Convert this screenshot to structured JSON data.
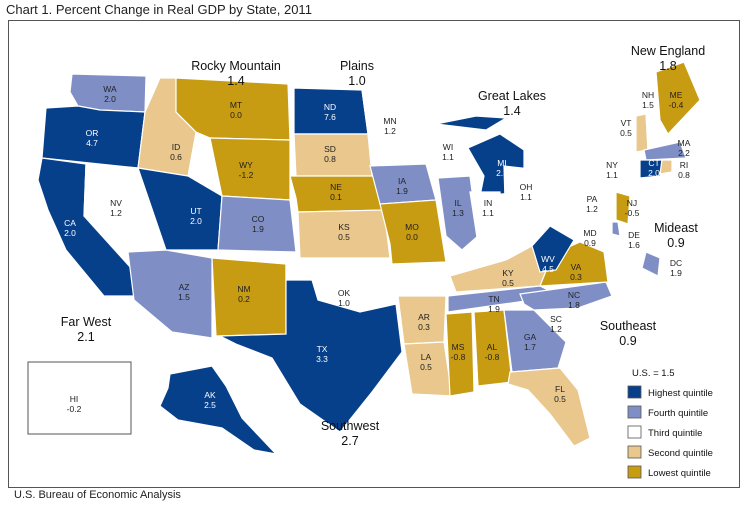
{
  "title": "Chart 1. Percent Change in Real GDP by State, 2011",
  "source": "U.S. Bureau of Economic Analysis",
  "colors": {
    "highest": "#063f8a",
    "fourth": "#7f8fc6",
    "third": "#ffffff",
    "second": "#e9c78d",
    "lowest": "#c79b12"
  },
  "legend": {
    "title": "U.S. = 1.5",
    "items": [
      {
        "label": "Highest quintile",
        "key": "highest"
      },
      {
        "label": "Fourth quintile",
        "key": "fourth"
      },
      {
        "label": "Third quintile",
        "key": "third"
      },
      {
        "label": "Second quintile",
        "key": "second"
      },
      {
        "label": "Lowest quintile",
        "key": "lowest"
      }
    ]
  },
  "regions": [
    {
      "name": "Far West",
      "value": "2.1"
    },
    {
      "name": "Rocky Mountain",
      "value": "1.4"
    },
    {
      "name": "Plains",
      "value": "1.0"
    },
    {
      "name": "Great Lakes",
      "value": "1.4"
    },
    {
      "name": "New England",
      "value": "1.8"
    },
    {
      "name": "Mideast",
      "value": "0.9"
    },
    {
      "name": "Southeast",
      "value": "0.9"
    },
    {
      "name": "Southwest",
      "value": "2.7"
    }
  ],
  "states": [
    {
      "abbr": "WA",
      "value": "2.0",
      "q": "fourth"
    },
    {
      "abbr": "OR",
      "value": "4.7",
      "q": "highest"
    },
    {
      "abbr": "CA",
      "value": "2.0",
      "q": "highest"
    },
    {
      "abbr": "NV",
      "value": "1.2",
      "q": "third"
    },
    {
      "abbr": "ID",
      "value": "0.6",
      "q": "second"
    },
    {
      "abbr": "MT",
      "value": "0.0",
      "q": "lowest"
    },
    {
      "abbr": "WY",
      "value": "-1.2",
      "q": "lowest"
    },
    {
      "abbr": "UT",
      "value": "2.0",
      "q": "highest"
    },
    {
      "abbr": "CO",
      "value": "1.9",
      "q": "fourth"
    },
    {
      "abbr": "AZ",
      "value": "1.5",
      "q": "fourth"
    },
    {
      "abbr": "NM",
      "value": "0.2",
      "q": "lowest"
    },
    {
      "abbr": "ND",
      "value": "7.6",
      "q": "highest"
    },
    {
      "abbr": "SD",
      "value": "0.8",
      "q": "second"
    },
    {
      "abbr": "NE",
      "value": "0.1",
      "q": "lowest"
    },
    {
      "abbr": "KS",
      "value": "0.5",
      "q": "second"
    },
    {
      "abbr": "MN",
      "value": "1.2",
      "q": "third"
    },
    {
      "abbr": "IA",
      "value": "1.9",
      "q": "fourth"
    },
    {
      "abbr": "MO",
      "value": "0.0",
      "q": "lowest"
    },
    {
      "abbr": "OK",
      "value": "1.0",
      "q": "third"
    },
    {
      "abbr": "TX",
      "value": "3.3",
      "q": "highest"
    },
    {
      "abbr": "AR",
      "value": "0.3",
      "q": "second"
    },
    {
      "abbr": "LA",
      "value": "0.5",
      "q": "second"
    },
    {
      "abbr": "WI",
      "value": "1.1",
      "q": "third"
    },
    {
      "abbr": "IL",
      "value": "1.3",
      "q": "fourth"
    },
    {
      "abbr": "MI",
      "value": "2.3",
      "q": "highest"
    },
    {
      "abbr": "IN",
      "value": "1.1",
      "q": "third"
    },
    {
      "abbr": "OH",
      "value": "1.1",
      "q": "third"
    },
    {
      "abbr": "KY",
      "value": "0.5",
      "q": "second"
    },
    {
      "abbr": "TN",
      "value": "1.9",
      "q": "fourth"
    },
    {
      "abbr": "MS",
      "value": "-0.8",
      "q": "lowest"
    },
    {
      "abbr": "AL",
      "value": "-0.8",
      "q": "lowest"
    },
    {
      "abbr": "GA",
      "value": "1.7",
      "q": "fourth"
    },
    {
      "abbr": "FL",
      "value": "0.5",
      "q": "second"
    },
    {
      "abbr": "SC",
      "value": "1.2",
      "q": "third"
    },
    {
      "abbr": "NC",
      "value": "1.8",
      "q": "fourth"
    },
    {
      "abbr": "VA",
      "value": "0.3",
      "q": "lowest"
    },
    {
      "abbr": "WV",
      "value": "4.5",
      "q": "highest"
    },
    {
      "abbr": "PA",
      "value": "1.2",
      "q": "third"
    },
    {
      "abbr": "NY",
      "value": "1.1",
      "q": "third"
    },
    {
      "abbr": "NJ",
      "value": "-0.5",
      "q": "lowest"
    },
    {
      "abbr": "MD",
      "value": "0.9",
      "q": "third"
    },
    {
      "abbr": "DE",
      "value": "1.6",
      "q": "fourth"
    },
    {
      "abbr": "DC",
      "value": "1.9",
      "q": "fourth"
    },
    {
      "abbr": "VT",
      "value": "0.5",
      "q": "second"
    },
    {
      "abbr": "NH",
      "value": "1.5",
      "q": "third"
    },
    {
      "abbr": "ME",
      "value": "-0.4",
      "q": "lowest"
    },
    {
      "abbr": "MA",
      "value": "2.2",
      "q": "fourth"
    },
    {
      "abbr": "CT",
      "value": "2.0",
      "q": "highest"
    },
    {
      "abbr": "RI",
      "value": "0.8",
      "q": "second"
    },
    {
      "abbr": "AK",
      "value": "2.5",
      "q": "highest"
    },
    {
      "abbr": "HI",
      "value": "-0.2",
      "q": "lowest"
    }
  ]
}
